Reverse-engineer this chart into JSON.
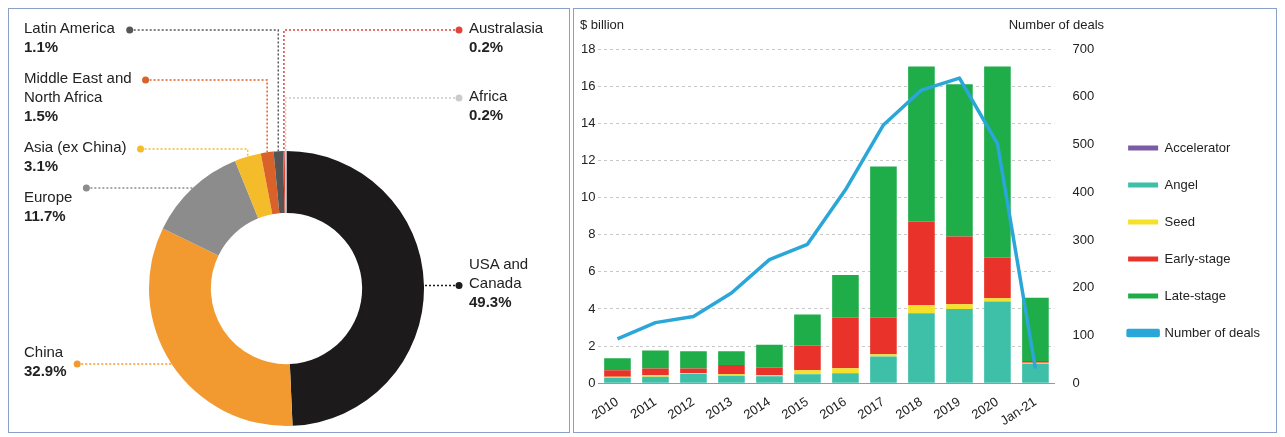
{
  "chart_data": [
    {
      "type": "donut",
      "categories": [
        "USA and Canada",
        "China",
        "Europe",
        "Asia (ex China)",
        "Middle East and North Africa",
        "Latin America",
        "Australasia",
        "Africa"
      ],
      "values": [
        49.3,
        32.9,
        11.7,
        3.1,
        1.5,
        1.1,
        0.2,
        0.2
      ],
      "colors": [
        "#1c1a1a",
        "#f29a30",
        "#8c8c8c",
        "#f4bb2a",
        "#d9622b",
        "#555555",
        "#e0443a",
        "#cccccc"
      ],
      "value_labels": [
        "49.3%",
        "32.9%",
        "11.7%",
        "3.1%",
        "1.5%",
        "1.1%",
        "0.2%",
        "0.2%"
      ],
      "legend": "left"
    },
    {
      "type": "bar",
      "stacked": true,
      "ylabel": "$ billion",
      "y2label": "Number of deals",
      "categories": [
        "2010",
        "2011",
        "2012",
        "2013",
        "2014",
        "2015",
        "2016",
        "2017",
        "2018",
        "2019",
        "2020",
        "Jan-21"
      ],
      "series": [
        {
          "name": "Accelerator",
          "color": "#7b5aa6",
          "values": [
            0,
            0,
            0,
            0,
            0,
            0,
            0,
            0,
            0,
            0,
            0,
            0
          ]
        },
        {
          "name": "Angel",
          "color": "#3dbfa8",
          "values": [
            0.3,
            0.35,
            0.5,
            0.4,
            0.38,
            0.48,
            0.54,
            1.44,
            3.77,
            4.0,
            4.4,
            1.05
          ]
        },
        {
          "name": "Seed",
          "color": "#f5e02a",
          "values": [
            0.05,
            0.1,
            0.05,
            0.08,
            0.05,
            0.22,
            0.27,
            0.12,
            0.45,
            0.25,
            0.18,
            0.05
          ]
        },
        {
          "name": "Early-stage",
          "color": "#e8322a",
          "values": [
            0.35,
            0.35,
            0.25,
            0.5,
            0.42,
            1.33,
            2.73,
            1.98,
            4.49,
            3.65,
            2.19,
            0.1
          ]
        },
        {
          "name": "Late-stage",
          "color": "#1fad4a",
          "values": [
            0.65,
            0.97,
            0.92,
            0.75,
            1.22,
            1.67,
            2.29,
            8.13,
            8.35,
            8.2,
            10.29,
            3.41
          ]
        },
        {
          "name": "Number of deals",
          "type": "line",
          "axis": "y2",
          "color": "#2aa6d8",
          "values": [
            93,
            127,
            140,
            189,
            259,
            291,
            405,
            541,
            614,
            639,
            502,
            31
          ]
        }
      ],
      "ylim": [
        0,
        18
      ],
      "yticks": [
        0,
        2,
        4,
        6,
        8,
        10,
        12,
        14,
        16,
        18
      ],
      "y2lim": [
        0,
        700
      ],
      "y2ticks": [
        0,
        100,
        200,
        300,
        400,
        500,
        600,
        700
      ],
      "grid": "y",
      "legend": "right",
      "marker": "none",
      "line_style": "solid"
    }
  ]
}
